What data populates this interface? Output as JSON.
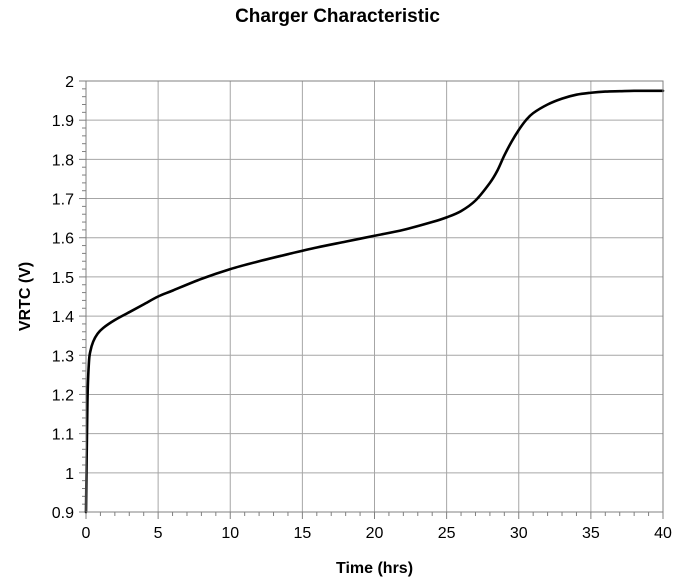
{
  "chart_data": {
    "type": "line",
    "title": "Charger Characteristic",
    "xlabel": "Time (hrs)",
    "ylabel": "VRTC (V)",
    "xlim": [
      0,
      40
    ],
    "ylim": [
      0.9,
      2
    ],
    "x_ticks": [
      "0",
      "5",
      "10",
      "15",
      "20",
      "25",
      "30",
      "35",
      "40"
    ],
    "y_ticks": [
      "0.9",
      "1",
      "1.1",
      "1.2",
      "1.3",
      "1.4",
      "1.5",
      "1.6",
      "1.7",
      "1.8",
      "1.9",
      "2"
    ],
    "grid": true,
    "legend": "none",
    "line_color": "#000000",
    "grid_color": "#a6a6a6",
    "series": [
      {
        "x": [
          0,
          0.1,
          0.2,
          0.3,
          0.5,
          0.8,
          1.2,
          2,
          3,
          4,
          5,
          6,
          8,
          10,
          12,
          14,
          16,
          18,
          20,
          22,
          24,
          25,
          26,
          27,
          28,
          28.5,
          29,
          29.5,
          30,
          30.5,
          31,
          32,
          33,
          34,
          35,
          36,
          37,
          38,
          39,
          40
        ],
        "values": [
          0.9,
          1.18,
          1.28,
          1.31,
          1.335,
          1.355,
          1.37,
          1.39,
          1.41,
          1.43,
          1.45,
          1.465,
          1.495,
          1.52,
          1.54,
          1.558,
          1.575,
          1.59,
          1.605,
          1.62,
          1.64,
          1.652,
          1.668,
          1.695,
          1.74,
          1.77,
          1.81,
          1.845,
          1.875,
          1.9,
          1.918,
          1.94,
          1.955,
          1.965,
          1.97,
          1.973,
          1.974,
          1.975,
          1.975,
          1.975
        ]
      }
    ]
  }
}
